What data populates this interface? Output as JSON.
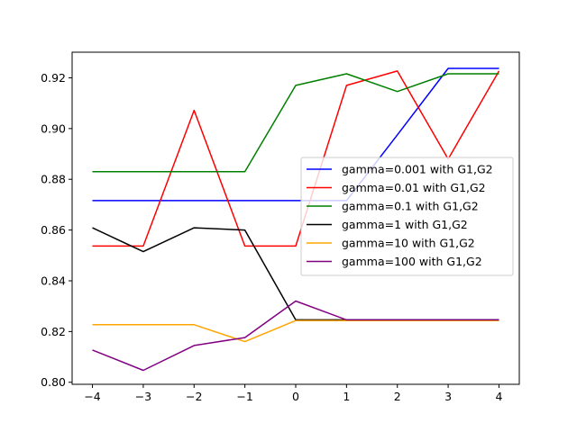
{
  "chart_data": {
    "type": "line",
    "title": "",
    "xlabel": "",
    "ylabel": "",
    "x": [
      -4,
      -3,
      -2,
      -1,
      0,
      1,
      2,
      3,
      4
    ],
    "xticks": [
      "−4",
      "−3",
      "−2",
      "−1",
      "0",
      "1",
      "2",
      "3",
      "4"
    ],
    "yticks": [
      "0.80",
      "0.82",
      "0.84",
      "0.86",
      "0.88",
      "0.90",
      "0.92"
    ],
    "ytick_values": [
      0.8,
      0.82,
      0.84,
      0.86,
      0.88,
      0.9,
      0.92
    ],
    "xlim": [
      -4.4,
      4.4
    ],
    "ylim": [
      0.7992,
      0.9301
    ],
    "grid": false,
    "legend_position": "center-right",
    "series": [
      {
        "name": "gamma=0.001 with G1,G2",
        "color": "#0000ff",
        "values": [
          0.8716,
          0.8716,
          0.8716,
          0.8716,
          0.8716,
          0.8716,
          0.8975,
          0.9237,
          0.9237
        ]
      },
      {
        "name": "gamma=0.01 with G1,G2",
        "color": "#ff0000",
        "values": [
          0.8537,
          0.8537,
          0.9072,
          0.8537,
          0.8537,
          0.917,
          0.9227,
          0.888,
          0.9227
        ]
      },
      {
        "name": "gamma=0.1 with G1,G2",
        "color": "#008000",
        "values": [
          0.883,
          0.883,
          0.883,
          0.883,
          0.917,
          0.9216,
          0.9146,
          0.9216,
          0.9216
        ]
      },
      {
        "name": "gamma=1 with G1,G2",
        "color": "#000000",
        "values": [
          0.8609,
          0.8515,
          0.8609,
          0.86,
          0.8246,
          0.8246,
          0.8246,
          0.8246,
          0.8246
        ]
      },
      {
        "name": "gamma=10 with G1,G2",
        "color": "#ffa500",
        "values": [
          0.8227,
          0.8227,
          0.8227,
          0.816,
          0.8243,
          0.8243,
          0.8243,
          0.8243,
          0.8243
        ]
      },
      {
        "name": "gamma=100 with G1,G2",
        "color": "#800080",
        "values": [
          0.8127,
          0.8047,
          0.8145,
          0.8176,
          0.832,
          0.8246,
          0.8246,
          0.8246,
          0.8246
        ]
      }
    ]
  }
}
